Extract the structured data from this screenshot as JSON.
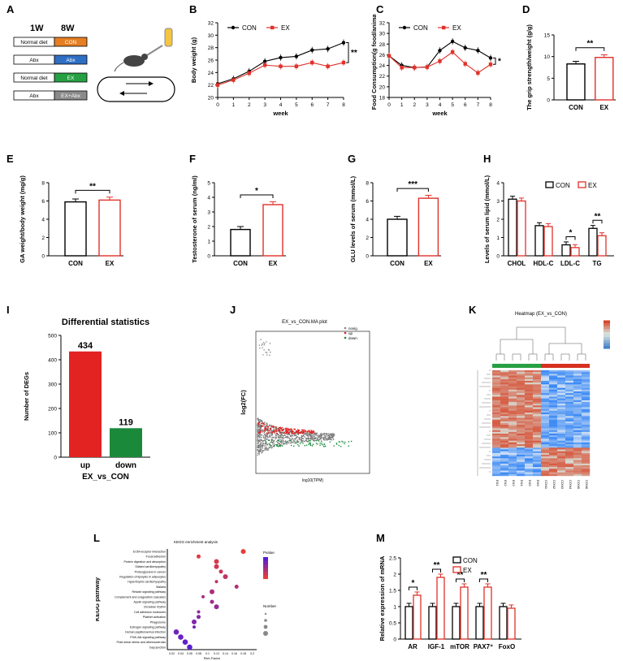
{
  "panel_labels": {
    "A": "A",
    "B": "B",
    "C": "C",
    "D": "D",
    "E": "E",
    "F": "F",
    "G": "G",
    "H": "H",
    "I": "I",
    "J": "J",
    "K": "K",
    "L": "L",
    "M": "M"
  },
  "legend": {
    "con": "CON",
    "ex": "EX"
  },
  "colors": {
    "con": "#000000",
    "ex": "#e0312a",
    "up": "#e32222",
    "down": "#1a8a3a",
    "heat_hi": "#d7301f",
    "heat_lo": "#2c7bb6"
  },
  "panelA": {
    "col1": "1W",
    "col2": "8W",
    "rows": [
      {
        "left": "Normal diet",
        "right": "CON",
        "color": "#e67e22"
      },
      {
        "left": "Abx",
        "right": "Abx",
        "color": "#2e6fc4"
      },
      {
        "left": "Normal diet",
        "right": "EX",
        "color": "#27a043"
      },
      {
        "left": "Abx",
        "right": "EX+Abx",
        "color": "#8a8a8a"
      }
    ]
  },
  "sig": {
    "B": "**",
    "C": "*",
    "D": "**",
    "E": "**",
    "F": "*",
    "G": "***",
    "H_ldl": "*",
    "H_tg": "**",
    "M_ar": "*",
    "M_igf": "**",
    "M_mtor": "**",
    "M_pax": "**"
  },
  "chart_data": [
    {
      "id": "B",
      "type": "line",
      "xlabel": "week",
      "ylabel": "Body weight (g)",
      "x": [
        0,
        1,
        2,
        3,
        4,
        5,
        6,
        7,
        8
      ],
      "ylim": [
        20,
        32
      ],
      "yticks": [
        20,
        22,
        24,
        26,
        28,
        30,
        32
      ],
      "series": [
        {
          "name": "CON",
          "values": [
            22.2,
            23.0,
            24.2,
            25.8,
            26.4,
            26.6,
            27.6,
            27.8,
            28.8
          ]
        },
        {
          "name": "EX",
          "values": [
            22.0,
            22.8,
            23.9,
            25.2,
            25.0,
            25.0,
            25.6,
            25.0,
            25.6
          ]
        }
      ]
    },
    {
      "id": "C",
      "type": "line",
      "xlabel": "week",
      "ylabel": "Food Consumption(g food/animal)",
      "x": [
        0,
        1,
        2,
        3,
        4,
        5,
        6,
        7,
        8
      ],
      "ylim": [
        18,
        32
      ],
      "yticks": [
        18,
        20,
        22,
        24,
        26,
        28,
        30,
        32
      ],
      "series": [
        {
          "name": "CON",
          "values": [
            25.8,
            24.0,
            23.6,
            23.7,
            26.8,
            28.5,
            27.3,
            26.8,
            25.4
          ]
        },
        {
          "name": "EX",
          "values": [
            25.8,
            23.6,
            23.6,
            23.7,
            24.8,
            26.5,
            24.3,
            22.6,
            24.2
          ]
        }
      ]
    },
    {
      "id": "D",
      "type": "bar",
      "ylabel": "The grip strength/weight (g/g)",
      "categories": [
        "CON",
        "EX"
      ],
      "values": [
        8.3,
        9.8
      ],
      "ylim": [
        0,
        15
      ],
      "yticks": [
        0,
        5,
        10,
        15
      ]
    },
    {
      "id": "E",
      "type": "bar",
      "ylabel": "GA weight/body weight (mg/g)",
      "categories": [
        "CON",
        "EX"
      ],
      "values": [
        5.9,
        6.1
      ],
      "ylim": [
        0,
        8
      ],
      "yticks": [
        0,
        2,
        4,
        6,
        8
      ]
    },
    {
      "id": "F",
      "type": "bar",
      "ylabel": "Testosterone of serum (ng/ml)",
      "categories": [
        "CON",
        "EX"
      ],
      "values": [
        1.8,
        3.5
      ],
      "ylim": [
        0,
        5
      ],
      "yticks": [
        0,
        1,
        2,
        3,
        4,
        5
      ]
    },
    {
      "id": "G",
      "type": "bar",
      "ylabel": "GLU levels of serum (mmol/L)",
      "categories": [
        "CON",
        "EX"
      ],
      "values": [
        4.0,
        6.3
      ],
      "ylim": [
        0,
        8
      ],
      "yticks": [
        0,
        2,
        4,
        6,
        8
      ]
    },
    {
      "id": "H",
      "type": "bar",
      "ylabel": "Levels of serum lipid (mmol/L)",
      "categories": [
        "CHOL",
        "HDL-C",
        "LDL-C",
        "TG"
      ],
      "ylim": [
        0,
        4
      ],
      "yticks": [
        0,
        1,
        2,
        3,
        4
      ],
      "series": [
        {
          "name": "CON",
          "values": [
            3.1,
            1.65,
            0.6,
            1.5
          ]
        },
        {
          "name": "EX",
          "values": [
            3.0,
            1.6,
            0.45,
            1.1
          ]
        }
      ]
    },
    {
      "id": "I",
      "type": "bar",
      "title": "Differential statistics",
      "xlabel": "EX_vs_CON",
      "ylabel": "Number of DEGs",
      "categories": [
        "up",
        "down"
      ],
      "values": [
        434,
        119
      ],
      "ylim": [
        0,
        500
      ],
      "yticks": [
        0,
        100,
        200,
        300,
        400,
        500
      ]
    },
    {
      "id": "M",
      "type": "bar",
      "ylabel": "Relative expression of mRNA",
      "categories": [
        "AR",
        "IGF-1",
        "mTOR",
        "PAX7⁺",
        "FoxO"
      ],
      "ylim": [
        0,
        2.5
      ],
      "yticks": [
        0,
        0.5,
        1,
        1.5,
        2,
        2.5
      ],
      "series": [
        {
          "name": "CON",
          "values": [
            1.0,
            1.0,
            1.0,
            1.0,
            1.0
          ]
        },
        {
          "name": "EX",
          "values": [
            1.35,
            1.9,
            1.6,
            1.6,
            0.95
          ]
        }
      ]
    }
  ],
  "panelJ": {
    "title": "EX_vs_CON.MA plot",
    "xlabel": "log10(TPM)",
    "ylabel": "log2(FC)",
    "legend": [
      "nosig",
      "up",
      "down"
    ]
  },
  "panelK": {
    "title": "Heatmap (EX_vs_CON)",
    "cols": [
      "EX1",
      "EX2",
      "EX3",
      "EX4",
      "EX5",
      "EX6",
      "CON1",
      "CON2",
      "CON3",
      "CON4",
      "CON5",
      "CON6"
    ]
  },
  "panelL": {
    "title": "KEGG enrichment analysis",
    "xlabel": "Rich Factor",
    "ylabel": "KEGG pathway",
    "size_legend": "Number",
    "color_legend": "Pvalue",
    "pathways": [
      "ECM-receptor interaction",
      "Focal adhesion",
      "Protein digestion and absorption",
      "Dilated cardiomyopathy",
      "Proteoglycans in cancer",
      "Regulation of lipolysis in adipocytes",
      "Hypertrophic cardiomyopathy",
      "Malaria",
      "Relaxin signaling pathway",
      "Complement and coagulation cascades",
      "Apelin signaling pathway",
      "Circadian rhythm",
      "Cell adhesion molecules",
      "Platelet activation",
      "Phagosome",
      "Estrogen signaling pathway",
      "Human papillomavirus infection",
      "PI3K-Akt signaling pathway",
      "Fluid shear stress and atherosclerosis",
      "Gap junction"
    ],
    "rich": [
      0.18,
      0.08,
      0.12,
      0.12,
      0.13,
      0.14,
      0.12,
      0.165,
      0.11,
      0.09,
      0.11,
      0.12,
      0.08,
      0.08,
      0.07,
      0.07,
      0.03,
      0.04,
      0.05,
      0.06
    ]
  }
}
